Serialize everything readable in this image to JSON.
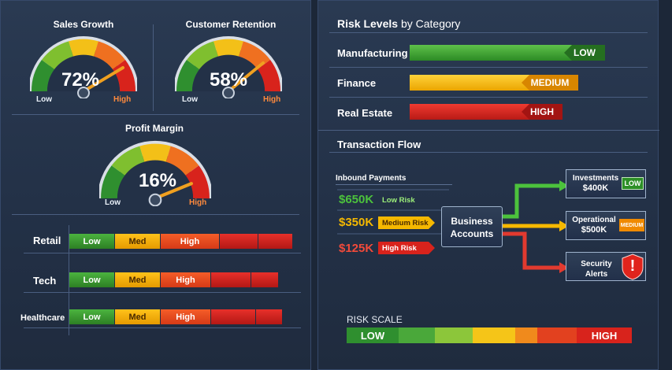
{
  "gauges": {
    "sales": {
      "title": "Sales Growth",
      "value": "72%",
      "level": 0.72,
      "low": "Low",
      "high": "High"
    },
    "retention": {
      "title": "Customer Retention",
      "value": "58%",
      "level": 0.58,
      "low": "Low",
      "high": "High"
    },
    "profit": {
      "title": "Profit Margin",
      "value": "16%",
      "level": 0.16,
      "low": "Low",
      "high": "High"
    }
  },
  "categories": [
    {
      "label": "Retail",
      "segments": [
        "Low",
        "Med",
        "High",
        "",
        ""
      ]
    },
    {
      "label": "Tech",
      "segments": [
        "Low",
        "Med",
        "High",
        "",
        ""
      ]
    },
    {
      "label": "Healthcare",
      "segments": [
        "Low",
        "Med",
        "High",
        "",
        ""
      ]
    }
  ],
  "risk_levels": {
    "title_bold": "Risk Levels",
    "title_rest": "by Category",
    "rows": [
      {
        "label": "Manufacturing",
        "level": "LOW",
        "color": "#3aa335"
      },
      {
        "label": "Finance",
        "level": "MEDIUM",
        "color": "#f5b800"
      },
      {
        "label": "Real Estate",
        "level": "HIGH",
        "color": "#d8231c"
      }
    ]
  },
  "transaction_flow": {
    "title": "Transaction Flow",
    "inbound_label": "Inbound Payments",
    "payments": [
      {
        "amount": "$650K",
        "tag": "Low Risk",
        "color": "#4cc23c"
      },
      {
        "amount": "$350K",
        "tag": "Medium Risk",
        "color": "#f5b800"
      },
      {
        "amount": "$125K",
        "tag": "High Risk",
        "color": "#e23a2f"
      }
    ],
    "hub": {
      "line1": "Business",
      "line2": "Accounts"
    },
    "outputs": [
      {
        "line1": "Investments",
        "line2": "$400K",
        "badge": "LOW"
      },
      {
        "line1": "Operational",
        "line2": "$500K",
        "badge": "MEDIUM"
      },
      {
        "line1": "Security Alerts",
        "line2": "",
        "badge": "!"
      }
    ]
  },
  "risk_scale": {
    "title": "RISK SCALE",
    "low": "LOW",
    "high": "HIGH"
  },
  "colors": {
    "green": "#3aa335",
    "yellow": "#f5b800",
    "orange": "#f06a1f",
    "red": "#d8231c",
    "background": "#243247"
  }
}
